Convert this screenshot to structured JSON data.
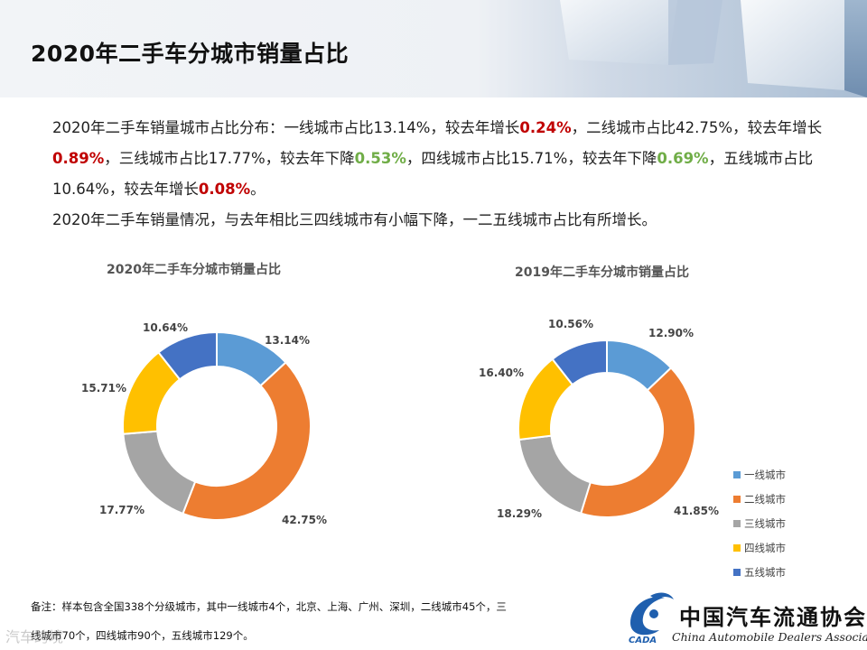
{
  "page": {
    "title": "2020年二手车分城市销量占比"
  },
  "summary": {
    "seg1": "2020年二手车销量城市占比分布：一线城市占比13.14%，较去年增长",
    "v1": "0.24%",
    "seg2": "，二线城市占比42.75%，较去年增长",
    "v2": "0.89%",
    "seg3": "，三线城市占比17.77%，较去年下降",
    "v3": "0.53%",
    "seg4": "，四线城市占比15.71%，较去年下降",
    "v4": "0.69%",
    "seg5": "，五线城市占比10.64%，较去年增长",
    "v5": "0.08%",
    "seg6": "。",
    "line2": "2020年二手车销量情况，与去年相比三四线城市有小幅下降，一二五线城市占比有所增长。"
  },
  "chart_data": [
    {
      "type": "pie",
      "title": "2020年二手车分城市销量占比",
      "categories": [
        "一线城市",
        "二线城市",
        "三线城市",
        "四线城市",
        "五线城市"
      ],
      "values": [
        13.14,
        42.75,
        17.77,
        15.71,
        10.64
      ],
      "labels": [
        "13.14%",
        "42.75%",
        "17.77%",
        "15.71%",
        "10.64%"
      ],
      "donut": true
    },
    {
      "type": "pie",
      "title": "2019年二手车分城市销量占比",
      "categories": [
        "一线城市",
        "二线城市",
        "三线城市",
        "四线城市",
        "五线城市"
      ],
      "values": [
        12.9,
        41.85,
        18.29,
        16.4,
        10.56
      ],
      "labels": [
        "12.90%",
        "41.85%",
        "18.29%",
        "16.40%",
        "10.56%"
      ],
      "donut": true,
      "legend": "right"
    }
  ],
  "colors": [
    "#5b9bd5",
    "#ed7d31",
    "#a5a5a5",
    "#ffc000",
    "#4472c4"
  ],
  "legend": {
    "items": [
      "一线城市",
      "二线城市",
      "三线城市",
      "四线城市",
      "五线城市"
    ]
  },
  "note": {
    "line1": "备注：样本包含全国338个分级城市，其中一线城市4个，北京、上海、广州、深圳，二线城市45个，三",
    "line2": "线城市70个，四线城市90个，五线城市129个。"
  },
  "watermark": "汽车跨境",
  "logo": {
    "name_cn": "中国汽车流通协会",
    "name_en": "China Automobile Dealers Association",
    "mark_text": "CADA"
  }
}
